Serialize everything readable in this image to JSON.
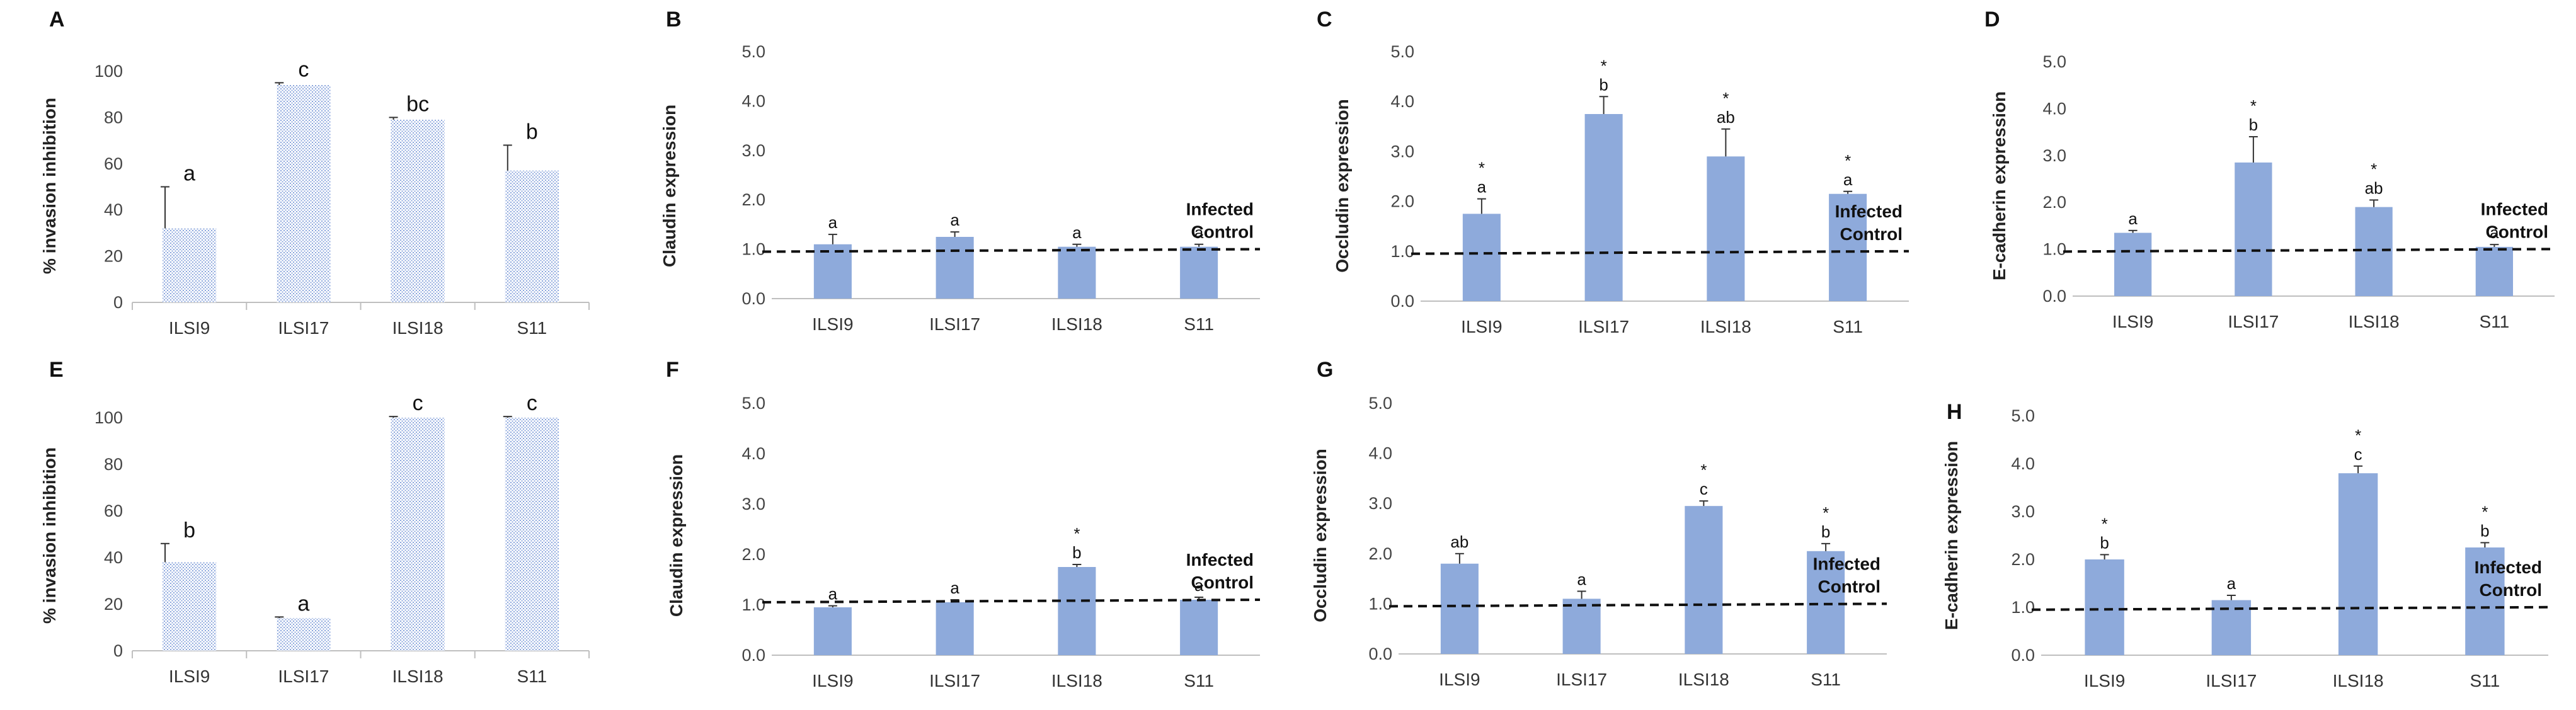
{
  "figure": {
    "reference_label": "Infected Control",
    "panels": [
      {
        "letter": "A"
      },
      {
        "letter": "B"
      },
      {
        "letter": "C"
      },
      {
        "letter": "D"
      },
      {
        "letter": "E"
      },
      {
        "letter": "F"
      },
      {
        "letter": "G"
      },
      {
        "letter": "H"
      }
    ]
  },
  "chart_data": [
    {
      "panel": "A",
      "type": "bar",
      "style": "hatched",
      "ylabel": "% invasion inhibition",
      "ylim": [
        0,
        100
      ],
      "yticks": [
        "0",
        "20",
        "40",
        "60",
        "80",
        "100"
      ],
      "categories": [
        "ILSI9",
        "ILSI17",
        "ILSI18",
        "S11"
      ],
      "values": [
        32,
        94,
        79,
        57
      ],
      "errors": [
        18,
        1,
        1,
        11
      ],
      "letters": [
        "a",
        "c",
        "bc",
        "b"
      ],
      "stars": [
        "",
        "",
        "",
        ""
      ]
    },
    {
      "panel": "B",
      "type": "bar",
      "style": "solid",
      "ylabel": "Claudin expression",
      "ylim": [
        0,
        5
      ],
      "yticks": [
        "0.0",
        "1.0",
        "2.0",
        "3.0",
        "4.0",
        "5.0"
      ],
      "categories": [
        "ILSI9",
        "ILSI17",
        "ILSI18",
        "S11"
      ],
      "values": [
        1.1,
        1.25,
        1.05,
        1.05
      ],
      "errors": [
        0.2,
        0.1,
        0.05,
        0.05
      ],
      "letters": [
        "a",
        "a",
        "a",
        "a"
      ],
      "stars": [
        "",
        "",
        "",
        ""
      ],
      "reference_line": 0.95,
      "reference_label": [
        "Infected",
        "Control"
      ]
    },
    {
      "panel": "C",
      "type": "bar",
      "style": "solid",
      "ylabel": "Occludin expression",
      "ylim": [
        0,
        5
      ],
      "yticks": [
        "0.0",
        "1.0",
        "2.0",
        "3.0",
        "4.0",
        "5.0"
      ],
      "categories": [
        "ILSI9",
        "ILSI17",
        "ILSI18",
        "S11"
      ],
      "values": [
        1.75,
        3.75,
        2.9,
        2.15
      ],
      "errors": [
        0.3,
        0.35,
        0.55,
        0.05
      ],
      "letters": [
        "a",
        "b",
        "ab",
        "a"
      ],
      "stars": [
        "*",
        "*",
        "*",
        "*"
      ],
      "reference_line": 0.95,
      "reference_label": [
        "Infected",
        "Control"
      ]
    },
    {
      "panel": "D",
      "type": "bar",
      "style": "solid",
      "ylabel": "E-cadherin expression",
      "ylim": [
        0,
        5
      ],
      "yticks": [
        "0.0",
        "1.0",
        "2.0",
        "3.0",
        "4.0",
        "5.0"
      ],
      "categories": [
        "ILSI9",
        "ILSI17",
        "ILSI18",
        "S11"
      ],
      "values": [
        1.35,
        2.85,
        1.9,
        1.05
      ],
      "errors": [
        0.05,
        0.55,
        0.15,
        0.05
      ],
      "letters": [
        "a",
        "b",
        "ab",
        "a"
      ],
      "stars": [
        "",
        "*",
        "*",
        ""
      ],
      "reference_line": 0.95,
      "reference_label": [
        "Infected",
        "Control"
      ]
    },
    {
      "panel": "E",
      "type": "bar",
      "style": "hatched",
      "ylabel": "% invasion inhibition",
      "ylim": [
        0,
        100
      ],
      "yticks": [
        "0",
        "20",
        "40",
        "60",
        "80",
        "100"
      ],
      "categories": [
        "ILSI9",
        "ILSI17",
        "ILSI18",
        "S11"
      ],
      "values": [
        38,
        14,
        100,
        100
      ],
      "errors": [
        8,
        0.5,
        0.5,
        0.5
      ],
      "letters": [
        "b",
        "a",
        "c",
        "c"
      ],
      "stars": [
        "",
        "",
        "",
        ""
      ]
    },
    {
      "panel": "F",
      "type": "bar",
      "style": "solid",
      "ylabel": "Claudin expression",
      "ylim": [
        0,
        5
      ],
      "yticks": [
        "0.0",
        "1.0",
        "2.0",
        "3.0",
        "4.0",
        "5.0"
      ],
      "categories": [
        "ILSI9",
        "ILSI17",
        "ILSI18",
        "S11"
      ],
      "values": [
        0.95,
        1.05,
        1.75,
        1.1
      ],
      "errors": [
        0.03,
        0.05,
        0.05,
        0.05
      ],
      "letters": [
        "a",
        "a",
        "b",
        "a"
      ],
      "stars": [
        "",
        "",
        "*",
        ""
      ],
      "reference_line": 1.05,
      "reference_label": [
        "Infected",
        "Control"
      ]
    },
    {
      "panel": "G",
      "type": "bar",
      "style": "solid",
      "ylabel": "Occludin expression",
      "ylim": [
        0,
        5
      ],
      "yticks": [
        "0.0",
        "1.0",
        "2.0",
        "3.0",
        "4.0",
        "5.0"
      ],
      "categories": [
        "ILSI9",
        "ILSI17",
        "ILSI18",
        "S11"
      ],
      "values": [
        1.8,
        1.1,
        2.95,
        2.05
      ],
      "errors": [
        0.2,
        0.15,
        0.1,
        0.15
      ],
      "letters": [
        "ab",
        "a",
        "c",
        "b"
      ],
      "stars": [
        "",
        "",
        "*",
        "*"
      ],
      "reference_line": 0.95,
      "reference_label": [
        "Infected",
        "Control"
      ]
    },
    {
      "panel": "H",
      "type": "bar",
      "style": "solid",
      "ylabel": "E-cadherin expression",
      "ylim": [
        0,
        5
      ],
      "yticks": [
        "0.0",
        "1.0",
        "2.0",
        "3.0",
        "4.0",
        "5.0"
      ],
      "categories": [
        "ILSI9",
        "ILSI17",
        "ILSI18",
        "S11"
      ],
      "values": [
        2.0,
        1.15,
        3.8,
        2.25
      ],
      "errors": [
        0.1,
        0.1,
        0.15,
        0.1
      ],
      "letters": [
        "b",
        "a",
        "c",
        "b"
      ],
      "stars": [
        "*",
        "",
        "*",
        "*"
      ],
      "reference_line": 0.95,
      "reference_label": [
        "Infected",
        "Control"
      ]
    }
  ]
}
